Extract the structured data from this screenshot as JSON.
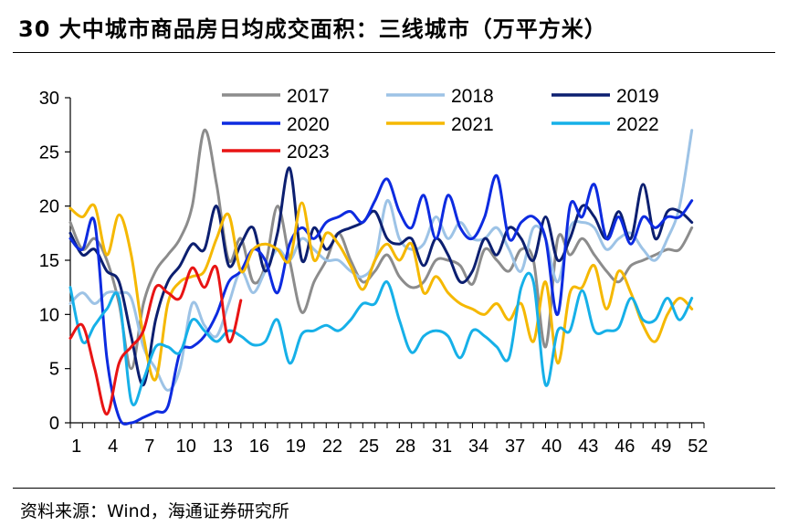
{
  "title": "30 大中城市商品房日均成交面积：三线城市（万平方米）",
  "source": "资料来源：Wind，海通证券研究所",
  "chart_data": {
    "type": "line",
    "x_ticks": [
      "1",
      "4",
      "7",
      "10",
      "13",
      "16",
      "19",
      "22",
      "25",
      "28",
      "31",
      "34",
      "37",
      "40",
      "43",
      "46",
      "49",
      "52"
    ],
    "y_ticks": [
      "0",
      "5",
      "10",
      "15",
      "20",
      "25",
      "30"
    ],
    "xlim": [
      1,
      53
    ],
    "ylim": [
      0,
      30
    ],
    "legend_position": "top",
    "series": [
      {
        "name": "2017",
        "color": "#8c8c8c",
        "values": [
          18.5,
          16.0,
          17.0,
          15.0,
          11.0,
          5.0,
          11.0,
          14.0,
          15.5,
          17.0,
          20.0,
          27.0,
          22.0,
          15.0,
          17.0,
          13.0,
          14.5,
          20.0,
          15.0,
          10.2,
          13.0,
          15.0,
          17.5,
          15.0,
          13.0,
          14.0,
          15.5,
          13.5,
          12.5,
          13.0,
          15.0,
          15.0,
          14.5,
          12.8,
          16.0,
          15.0,
          14.0,
          16.0,
          15.0,
          7.0,
          17.0,
          15.5,
          17.0,
          15.5,
          14.0,
          13.0,
          14.5,
          15.0,
          15.5,
          16.0,
          16.0,
          18.0
        ]
      },
      {
        "name": "2018",
        "color": "#9dc3e6",
        "values": [
          11.0,
          12.0,
          11.0,
          12.0,
          12.0,
          11.5,
          7.0,
          5.0,
          3.0,
          5.0,
          11.0,
          9.0,
          8.0,
          11.0,
          14.0,
          12.0,
          14.0,
          16.0,
          15.0,
          17.0,
          16.0,
          15.0,
          15.0,
          14.0,
          13.5,
          15.0,
          20.5,
          17.0,
          16.0,
          16.5,
          19.0,
          17.0,
          18.5,
          17.0,
          17.0,
          18.0,
          16.0,
          14.0,
          18.0,
          17.0,
          13.0,
          18.0,
          18.5,
          18.0,
          16.0,
          17.0,
          17.5,
          16.0,
          15.0,
          17.0,
          20.0,
          27.0
        ]
      },
      {
        "name": "2019",
        "color": "#0c1f70",
        "values": [
          17.5,
          15.5,
          16.0,
          14.0,
          13.0,
          8.0,
          3.5,
          9.5,
          13.0,
          14.5,
          16.5,
          16.0,
          20.0,
          14.5,
          16.5,
          18.0,
          14.0,
          17.5,
          23.5,
          15.0,
          18.0,
          16.0,
          17.5,
          18.0,
          18.5,
          19.5,
          17.0,
          16.5,
          17.0,
          14.5,
          17.0,
          15.5,
          13.0,
          14.0,
          17.0,
          15.5,
          18.0,
          17.0,
          15.0,
          19.0,
          15.0,
          17.0,
          20.0,
          19.0,
          17.0,
          19.5,
          17.0,
          22.0,
          17.0,
          19.5,
          19.5,
          18.5
        ]
      },
      {
        "name": "2020",
        "color": "#0d2be0",
        "values": [
          17.0,
          16.0,
          18.5,
          6.0,
          0.5,
          0.0,
          0.5,
          1.0,
          1.5,
          6.5,
          7.0,
          8.0,
          10.0,
          13.0,
          14.0,
          16.0,
          15.0,
          12.0,
          16.5,
          18.0,
          17.0,
          18.5,
          19.0,
          19.5,
          18.5,
          20.5,
          22.5,
          19.5,
          18.0,
          21.0,
          17.0,
          21.0,
          18.0,
          17.0,
          19.0,
          22.8,
          17.0,
          18.5,
          19.0,
          17.0,
          10.0,
          20.0,
          19.0,
          22.0,
          17.0,
          19.0,
          16.5,
          19.0,
          18.0,
          19.0,
          19.0,
          20.5
        ]
      },
      {
        "name": "2021",
        "color": "#f5b800",
        "values": [
          19.8,
          19.0,
          20.0,
          15.5,
          19.2,
          15.5,
          8.0,
          4.0,
          11.0,
          13.0,
          13.5,
          14.0,
          17.0,
          19.2,
          14.0,
          16.0,
          16.5,
          16.0,
          15.0,
          20.3,
          15.0,
          17.5,
          16.5,
          14.5,
          12.3,
          15.0,
          16.5,
          15.0,
          16.5,
          12.0,
          13.5,
          12.0,
          11.0,
          10.5,
          10.0,
          11.0,
          9.5,
          11.0,
          7.5,
          13.0,
          5.5,
          12.0,
          12.5,
          14.5,
          10.5,
          14.0,
          12.0,
          9.0,
          7.5,
          10.0,
          11.5,
          10.5
        ]
      },
      {
        "name": "2022",
        "color": "#16b0e8",
        "values": [
          12.5,
          7.5,
          9.0,
          10.5,
          11.5,
          2.0,
          4.0,
          7.0,
          7.0,
          6.5,
          9.5,
          8.5,
          7.5,
          8.5,
          8.0,
          7.2,
          7.5,
          9.5,
          5.5,
          8.2,
          8.5,
          9.0,
          8.5,
          9.5,
          11.0,
          11.0,
          13.0,
          9.5,
          6.5,
          8.0,
          8.5,
          8.0,
          6.0,
          8.5,
          8.0,
          7.0,
          6.0,
          12.5,
          13.0,
          3.5,
          8.5,
          8.5,
          12.2,
          8.5,
          8.5,
          8.8,
          11.5,
          9.5,
          9.5,
          11.5,
          9.5,
          11.5
        ]
      },
      {
        "name": "2023",
        "color": "#e81414",
        "values": [
          7.8,
          9.0,
          5.0,
          0.8,
          5.5,
          7.0,
          8.5,
          12.5,
          12.0,
          11.5,
          14.3,
          12.5,
          14.3,
          7.5,
          11.3
        ]
      }
    ]
  }
}
